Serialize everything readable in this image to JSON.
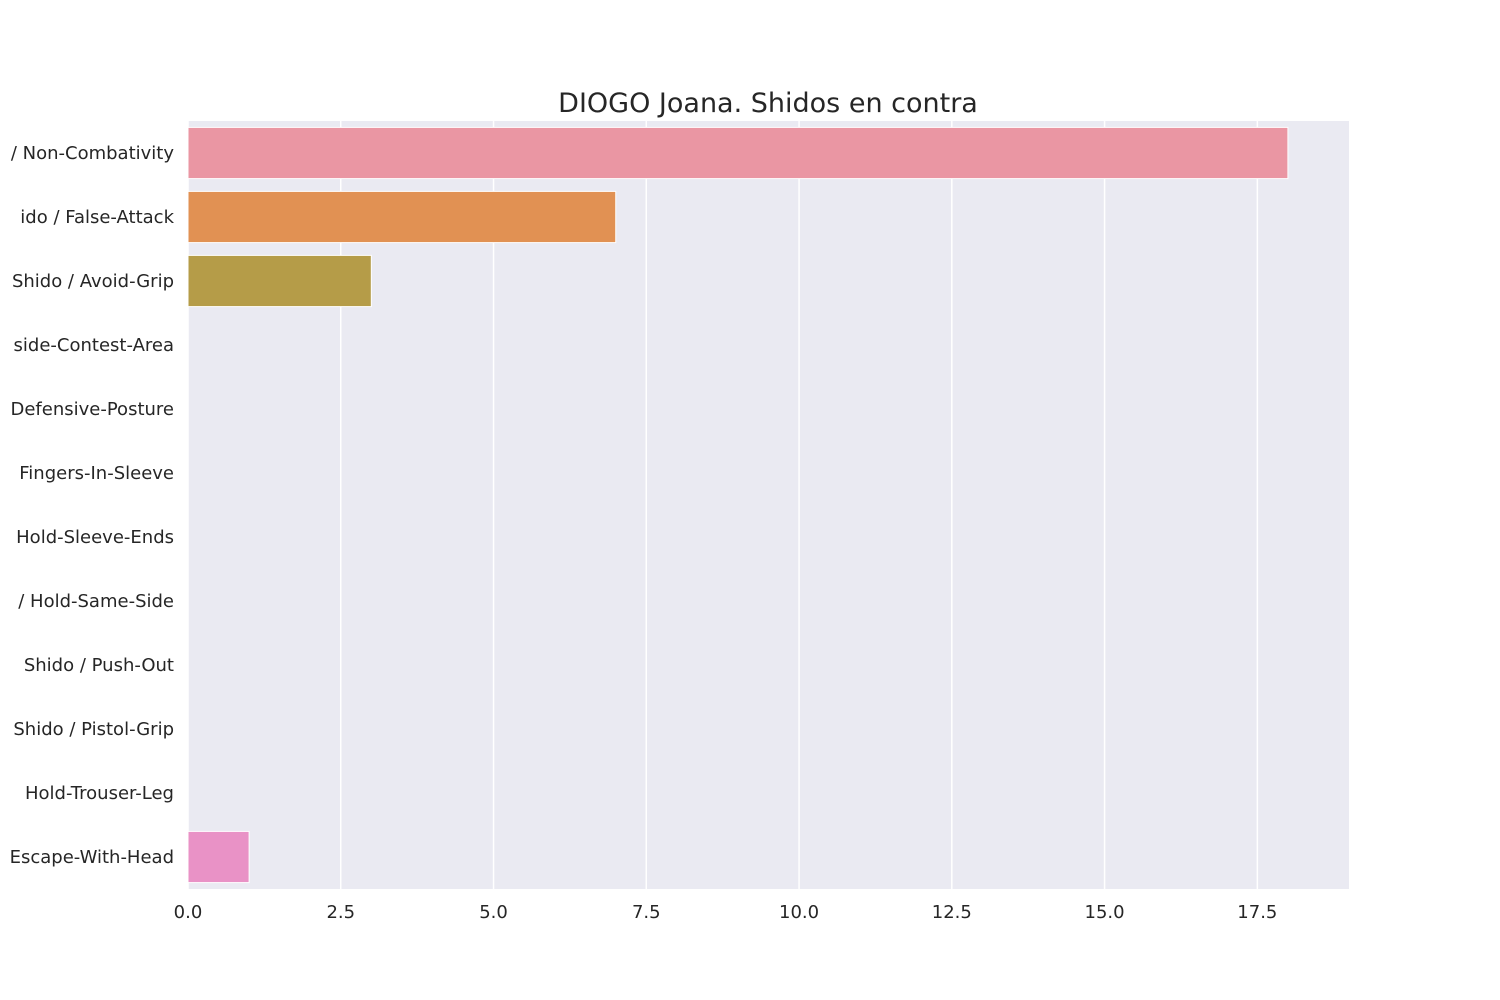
{
  "chart_data": {
    "type": "bar",
    "orientation": "horizontal",
    "title": "DIOGO Joana. Shidos en contra",
    "xlabel": "",
    "ylabel": "",
    "categories": [
      "Shido / Non-Combativity",
      "Shido / False-Attack",
      "Shido / Avoid-Grip",
      "Shido / Outside-Contest-Area",
      "Shido / Defensive-Posture",
      "Shido / Fingers-In-Sleeve",
      "Shido / Hold-Sleeve-Ends",
      "Shido / Hold-Same-Side",
      "Shido / Push-Out",
      "Shido / Pistol-Grip",
      "Shido / Hold-Trouser-Leg",
      "Shido / Escape-With-Head"
    ],
    "category_labels_visible": [
      "/ Non-Combativity",
      "ido / False-Attack",
      "Shido / Avoid-Grip",
      "side-Contest-Area",
      "Defensive-Posture",
      "Fingers-In-Sleeve",
      "Hold-Sleeve-Ends",
      "/ Hold-Same-Side",
      "Shido / Push-Out",
      "Shido / Pistol-Grip",
      "Hold-Trouser-Leg",
      "Escape-With-Head"
    ],
    "values": [
      18,
      7,
      3,
      0,
      0,
      0,
      0,
      0,
      0,
      0,
      0,
      1
    ],
    "colors": [
      "#ea96a3",
      "#e19153",
      "#b59c48",
      "#9aa543",
      "#62b146",
      "#4fb08d",
      "#52ad9f",
      "#56aaba",
      "#5ea6d5",
      "#a48cf4",
      "#dd7fe0",
      "#e992c6"
    ],
    "xlim": [
      0,
      19
    ],
    "xticks": [
      0,
      2.5,
      5,
      7.5,
      10,
      12.5,
      15,
      17.5
    ],
    "xtick_labels": [
      "0.0",
      "2.5",
      "5.0",
      "7.5",
      "10.0",
      "12.5",
      "15.0",
      "17.5"
    ],
    "grid": true,
    "background_color": "#eaeaf2",
    "grid_color": "#ffffff",
    "legend": "none"
  }
}
